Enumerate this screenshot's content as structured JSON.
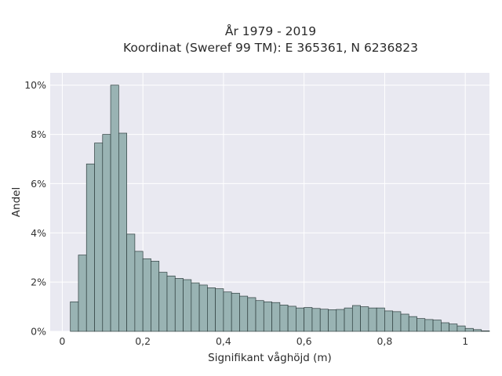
{
  "chart_data": {
    "type": "histogram",
    "title_line1": "År 1979 - 2019",
    "title_line2": "Koordinat (Sweref 99 TM): E 365361, N 6236823",
    "xlabel": "Signifikant våghöjd (m)",
    "ylabel": "Andel",
    "xlim": [
      -0.03,
      1.06
    ],
    "ylim": [
      0,
      10.5
    ],
    "x_ticks": [
      0,
      0.2,
      0.4,
      0.6,
      0.8,
      1.0
    ],
    "x_tick_labels": [
      "0",
      "0,2",
      "0,4",
      "0,6",
      "0,8",
      "1"
    ],
    "y_ticks": [
      0,
      2,
      4,
      6,
      8,
      10
    ],
    "y_tick_labels": [
      "0%",
      "2%",
      "4%",
      "6%",
      "8%",
      "10%"
    ],
    "grid": true,
    "bin_start": 0.02,
    "bin_width": 0.02,
    "values": [
      1.2,
      3.1,
      6.8,
      7.65,
      8.0,
      10.0,
      8.05,
      3.95,
      3.25,
      2.95,
      2.85,
      2.4,
      2.25,
      2.15,
      2.1,
      1.97,
      1.88,
      1.77,
      1.73,
      1.6,
      1.55,
      1.43,
      1.37,
      1.25,
      1.2,
      1.17,
      1.07,
      1.02,
      0.95,
      0.97,
      0.93,
      0.9,
      0.88,
      0.89,
      0.95,
      1.05,
      1.0,
      0.95,
      0.95,
      0.83,
      0.8,
      0.7,
      0.6,
      0.52,
      0.48,
      0.46,
      0.35,
      0.3,
      0.22,
      0.12,
      0.07,
      0.02
    ],
    "colors": {
      "bar_fill": "#99b3b3",
      "bar_stroke": "#2f3f3f",
      "plot_bg": "#e9e9f1",
      "grid": "#ffffff"
    }
  }
}
